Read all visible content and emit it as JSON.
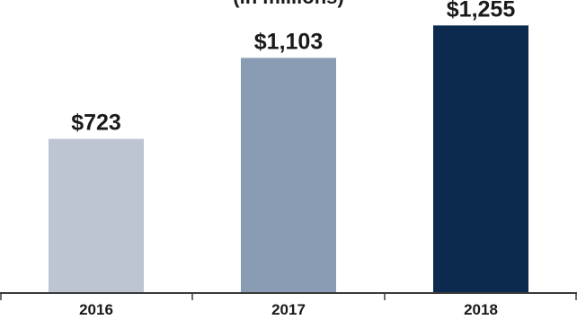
{
  "chart_data": {
    "type": "bar",
    "subtitle": "(in millions)",
    "categories": [
      "2016",
      "2017",
      "2018"
    ],
    "values": [
      723,
      1103,
      1255
    ],
    "value_labels": [
      "$723",
      "$1,103",
      "$1,255"
    ],
    "colors": [
      "#bcc5d1",
      "#8a9cb3",
      "#0c2a4f"
    ],
    "axis_color": "#3a3a3a",
    "ylim": [
      0,
      1290
    ],
    "grid": false,
    "legend": "none"
  }
}
